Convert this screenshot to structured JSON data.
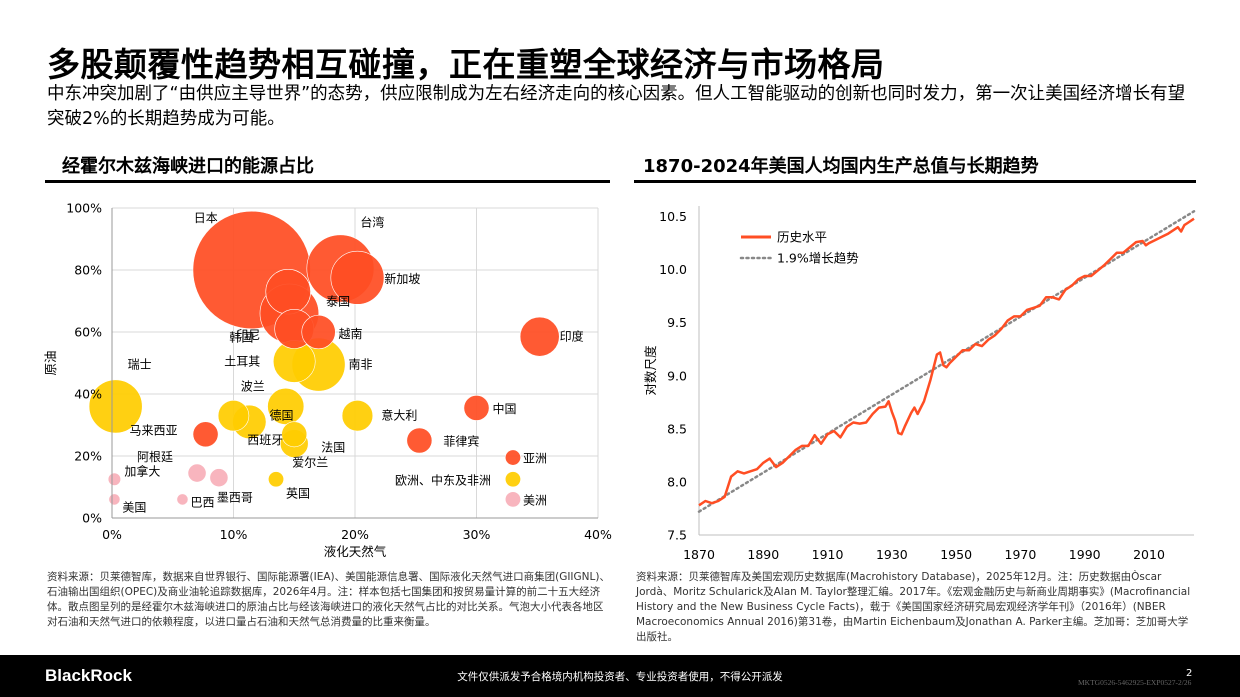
{
  "page": {
    "title": "多股颠覆性趋势相互碰撞，正在重塑全球经济与市场格局",
    "subtitle": "中东冲突加剧了“由供应主导世界”的态势，供应限制成为左右经济走向的核心因素。但人工智能驱动的创新也同时发力，第一次让美国经济增长有望突破2%的长期趋势成为可能。"
  },
  "left_panel": {
    "title": "经霍尔木兹海峡进口的能源占比",
    "source": "资料来源：贝莱德智库，数据来自世界银行、国际能源署(IEA)、美国能源信息署、国际液化天然气进口商集团(GIIGNL)、石油输出国组织(OPEC)及商业油轮追踪数据库，2026年4月。注：样本包括七国集团和按贸易量计算的前二十五大经济体。散点图呈列的是经霍尔木兹海峡进口的原油占比与经该海峡进口的液化天然气占比的对比关系。气泡大小代表各地区对石油和天然气进口的依赖程度，以进口量占石油和天然气总消费量的比重来衡量。"
  },
  "right_panel": {
    "title": "1870-2024年美国人均国内生产总值与长期趋势",
    "source": "资料来源：贝莱德智库及美国宏观历史数据库(Macrohistory Database)，2025年12月。注：历史数据由Òscar Jordà、Moritz Schularick及Alan M. Taylor整理汇编。2017年。《宏观金融历史与新商业周期事实》(Macrofinancial History and the New Business Cycle Facts)，载于《美国国家经济研究局宏观经济学年刊》（2016年）(NBER Macroeconomics Annual 2016)第31卷，由Martin Eichenbaum及Jonathan A. Parker主编。芝加哥：芝加哥大学出版社。"
  },
  "footer": {
    "logo": "BlackRock",
    "notice": "文件仅供派发予合格境内机构投资者、专业投资者使用，不得公开派发",
    "page_number": "2",
    "code": "MKTG0526-5462925-EXP0527-2/26"
  },
  "colors": {
    "red": "#FF4E24",
    "yellow": "#FFCC00",
    "pink": "#F8B5BE",
    "trend": "#888888"
  },
  "chart_data": [
    {
      "type": "scatter",
      "xlabel": "液化天然气",
      "ylabel": "原油",
      "xlim": [
        0,
        40
      ],
      "ylim": [
        0,
        100
      ],
      "x_ticks": [
        "0%",
        "10%",
        "20%",
        "30%",
        "40%"
      ],
      "y_ticks": [
        "0%",
        "20%",
        "40%",
        "60%",
        "80%",
        "100%"
      ],
      "grid": true,
      "points": [
        {
          "name": "日本",
          "x": 11.5,
          "y": 80,
          "size": 4.2,
          "color": "red"
        },
        {
          "name": "台湾",
          "x": 18.8,
          "y": 80.5,
          "size": 2.4,
          "color": "red"
        },
        {
          "name": "新加坡",
          "x": 20.2,
          "y": 77.5,
          "size": 1.9,
          "color": "red"
        },
        {
          "name": "泰国",
          "x": 14.5,
          "y": 73,
          "size": 1.6,
          "color": "red"
        },
        {
          "name": "韩国",
          "x": 14.6,
          "y": 66,
          "size": 2.1,
          "color": "red"
        },
        {
          "name": "印尼",
          "x": 15,
          "y": 61,
          "size": 1.4,
          "color": "red"
        },
        {
          "name": "越南",
          "x": 17,
          "y": 60,
          "size": 1.2,
          "color": "red"
        },
        {
          "name": "印度",
          "x": 35.2,
          "y": 58.5,
          "size": 1.4,
          "color": "red"
        },
        {
          "name": "土耳其",
          "x": 15,
          "y": 50.5,
          "size": 1.5,
          "color": "yellow"
        },
        {
          "name": "南非",
          "x": 17,
          "y": 49.5,
          "size": 1.9,
          "color": "yellow"
        },
        {
          "name": "瑞士",
          "x": 0.3,
          "y": 36,
          "size": 1.9,
          "color": "yellow"
        },
        {
          "name": "波兰",
          "x": 14.3,
          "y": 36,
          "size": 1.3,
          "color": "yellow"
        },
        {
          "name": "德国",
          "x": 10,
          "y": 33,
          "size": 1.1,
          "color": "yellow"
        },
        {
          "name": "西班牙",
          "x": 11.3,
          "y": 31,
          "size": 1.2,
          "color": "yellow"
        },
        {
          "name": "意大利",
          "x": 20.2,
          "y": 33,
          "size": 1.1,
          "color": "yellow"
        },
        {
          "name": "中国",
          "x": 30,
          "y": 35.5,
          "size": 0.9,
          "color": "red"
        },
        {
          "name": "法国",
          "x": 15,
          "y": 27,
          "size": 0.9,
          "color": "yellow"
        },
        {
          "name": "马来西亚",
          "x": 7.7,
          "y": 27,
          "size": 0.9,
          "color": "red"
        },
        {
          "name": "菲律宾",
          "x": 25.3,
          "y": 25,
          "size": 0.9,
          "color": "red"
        },
        {
          "name": "爱尔兰",
          "x": 15,
          "y": 24,
          "size": 1.0,
          "color": "yellow"
        },
        {
          "name": "亚洲",
          "x": 33,
          "y": 19.5,
          "size": 0.55,
          "color": "red"
        },
        {
          "name": "阿根廷",
          "x": 7,
          "y": 14.5,
          "size": 0.65,
          "color": "pink"
        },
        {
          "name": "墨西哥",
          "x": 8.8,
          "y": 13,
          "size": 0.65,
          "color": "pink"
        },
        {
          "name": "加拿大",
          "x": 0.2,
          "y": 12.5,
          "size": 0.45,
          "color": "pink"
        },
        {
          "name": "英国",
          "x": 13.5,
          "y": 12.5,
          "size": 0.55,
          "color": "yellow"
        },
        {
          "name": "欧洲、中东及非洲",
          "x": 33,
          "y": 12.5,
          "size": 0.55,
          "color": "yellow"
        },
        {
          "name": "美国",
          "x": 0.2,
          "y": 6,
          "size": 0.4,
          "color": "pink"
        },
        {
          "name": "巴西",
          "x": 5.8,
          "y": 6,
          "size": 0.4,
          "color": "pink"
        },
        {
          "name": "美洲",
          "x": 33,
          "y": 6,
          "size": 0.55,
          "color": "pink"
        }
      ]
    },
    {
      "type": "line",
      "ylabel": "对数尺度",
      "xlim": [
        1870,
        2024
      ],
      "ylim": [
        7.5,
        10.6
      ],
      "x_ticks": [
        "1870",
        "1890",
        "1910",
        "1930",
        "1950",
        "1970",
        "1990",
        "2010"
      ],
      "y_ticks": [
        "7.5",
        "8.0",
        "8.5",
        "9.0",
        "9.5",
        "10.0",
        "10.5"
      ],
      "grid": false,
      "legend_position": "top-left",
      "series": [
        {
          "name": "历史水平",
          "color": "red",
          "style": "solid",
          "points": [
            [
              1870,
              7.78
            ],
            [
              1872,
              7.82
            ],
            [
              1874,
              7.8
            ],
            [
              1876,
              7.82
            ],
            [
              1878,
              7.86
            ],
            [
              1880,
              8.05
            ],
            [
              1882,
              8.1
            ],
            [
              1884,
              8.08
            ],
            [
              1886,
              8.1
            ],
            [
              1888,
              8.12
            ],
            [
              1890,
              8.18
            ],
            [
              1892,
              8.22
            ],
            [
              1894,
              8.14
            ],
            [
              1896,
              8.18
            ],
            [
              1898,
              8.24
            ],
            [
              1900,
              8.3
            ],
            [
              1902,
              8.34
            ],
            [
              1904,
              8.34
            ],
            [
              1906,
              8.44
            ],
            [
              1908,
              8.36
            ],
            [
              1910,
              8.45
            ],
            [
              1912,
              8.48
            ],
            [
              1914,
              8.42
            ],
            [
              1916,
              8.52
            ],
            [
              1918,
              8.56
            ],
            [
              1920,
              8.55
            ],
            [
              1922,
              8.56
            ],
            [
              1924,
              8.64
            ],
            [
              1926,
              8.7
            ],
            [
              1928,
              8.71
            ],
            [
              1929,
              8.76
            ],
            [
              1930,
              8.66
            ],
            [
              1931,
              8.58
            ],
            [
              1932,
              8.46
            ],
            [
              1933,
              8.45
            ],
            [
              1934,
              8.52
            ],
            [
              1936,
              8.65
            ],
            [
              1937,
              8.7
            ],
            [
              1938,
              8.64
            ],
            [
              1940,
              8.76
            ],
            [
              1942,
              8.96
            ],
            [
              1944,
              9.2
            ],
            [
              1945,
              9.22
            ],
            [
              1946,
              9.1
            ],
            [
              1947,
              9.08
            ],
            [
              1948,
              9.12
            ],
            [
              1950,
              9.18
            ],
            [
              1952,
              9.24
            ],
            [
              1954,
              9.24
            ],
            [
              1956,
              9.3
            ],
            [
              1958,
              9.28
            ],
            [
              1960,
              9.34
            ],
            [
              1962,
              9.38
            ],
            [
              1964,
              9.44
            ],
            [
              1966,
              9.52
            ],
            [
              1968,
              9.56
            ],
            [
              1970,
              9.56
            ],
            [
              1972,
              9.62
            ],
            [
              1974,
              9.64
            ],
            [
              1976,
              9.66
            ],
            [
              1978,
              9.74
            ],
            [
              1980,
              9.74
            ],
            [
              1982,
              9.72
            ],
            [
              1984,
              9.81
            ],
            [
              1986,
              9.85
            ],
            [
              1988,
              9.91
            ],
            [
              1990,
              9.94
            ],
            [
              1992,
              9.94
            ],
            [
              1994,
              9.99
            ],
            [
              1996,
              10.04
            ],
            [
              1998,
              10.1
            ],
            [
              2000,
              10.16
            ],
            [
              2002,
              10.16
            ],
            [
              2004,
              10.21
            ],
            [
              2006,
              10.26
            ],
            [
              2008,
              10.27
            ],
            [
              2009,
              10.23
            ],
            [
              2010,
              10.25
            ],
            [
              2012,
              10.28
            ],
            [
              2014,
              10.31
            ],
            [
              2016,
              10.34
            ],
            [
              2018,
              10.38
            ],
            [
              2019,
              10.4
            ],
            [
              2020,
              10.36
            ],
            [
              2021,
              10.42
            ],
            [
              2022,
              10.44
            ],
            [
              2024,
              10.48
            ]
          ]
        },
        {
          "name": "1.9%增长趋势",
          "color": "trend",
          "style": "dotted",
          "points": [
            [
              1870,
              7.72
            ],
            [
              2024,
              10.55
            ]
          ]
        }
      ]
    }
  ]
}
